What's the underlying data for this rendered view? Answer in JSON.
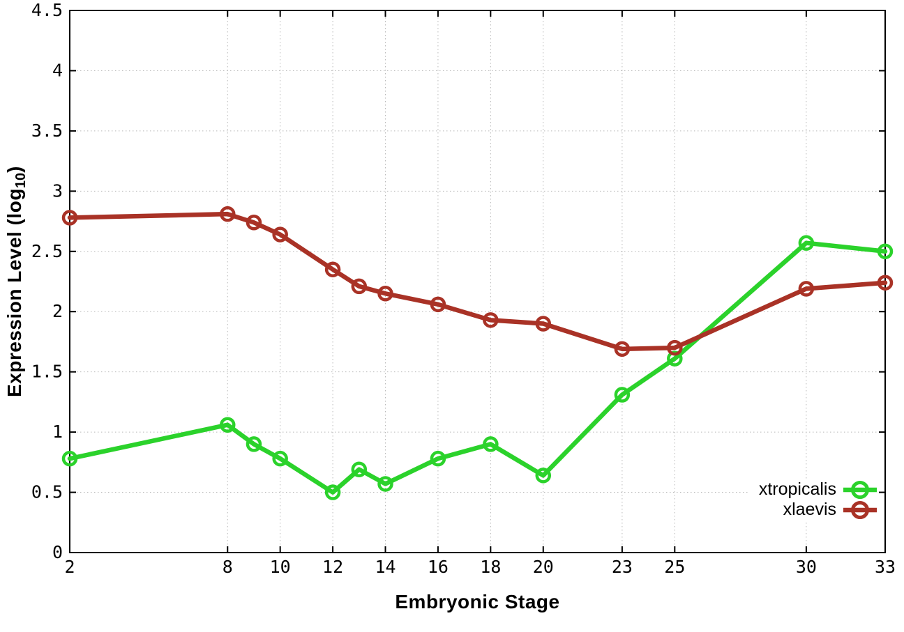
{
  "figure": {
    "background": "#ffffff",
    "border_color": "#000000",
    "grid_color": "#b8b8b8",
    "tick_label_color": "#000000"
  },
  "axis_titles": {
    "x": "Embryonic Stage",
    "y_prefix": "Expression Level (log",
    "y_sub": "10",
    "y_suffix": ")"
  },
  "legend": {
    "position": "bottom-right",
    "items": [
      "xtropicalis",
      "xlaevis"
    ]
  },
  "chart_data": {
    "type": "line",
    "title": "",
    "xlabel": "Embryonic Stage",
    "ylabel": "Expression Level (log10)",
    "x": [
      2,
      8,
      9,
      10,
      12,
      13,
      14,
      16,
      18,
      20,
      23,
      25,
      30,
      33
    ],
    "series": [
      {
        "name": "xtropicalis",
        "color": "#2bd22b",
        "marker": "open-circle",
        "values": [
          0.78,
          1.06,
          0.9,
          0.78,
          0.5,
          0.69,
          0.57,
          0.78,
          0.9,
          0.64,
          1.31,
          1.61,
          2.57,
          2.5
        ]
      },
      {
        "name": "xlaevis",
        "color": "#a93226",
        "marker": "open-circle",
        "values": [
          2.78,
          2.81,
          2.74,
          2.64,
          2.35,
          2.21,
          2.15,
          2.06,
          1.93,
          1.9,
          1.69,
          1.7,
          2.19,
          2.24
        ]
      }
    ],
    "xticks": [
      2,
      8,
      10,
      12,
      14,
      16,
      18,
      20,
      23,
      25,
      30,
      33
    ],
    "yticks": [
      0,
      0.5,
      1,
      1.5,
      2,
      2.5,
      3,
      3.5,
      4,
      4.5
    ],
    "xlim": [
      2,
      33
    ],
    "ylim": [
      0,
      4.5
    ],
    "grid": true,
    "grid_style": "dotted",
    "legend_position": "bottom-right"
  }
}
